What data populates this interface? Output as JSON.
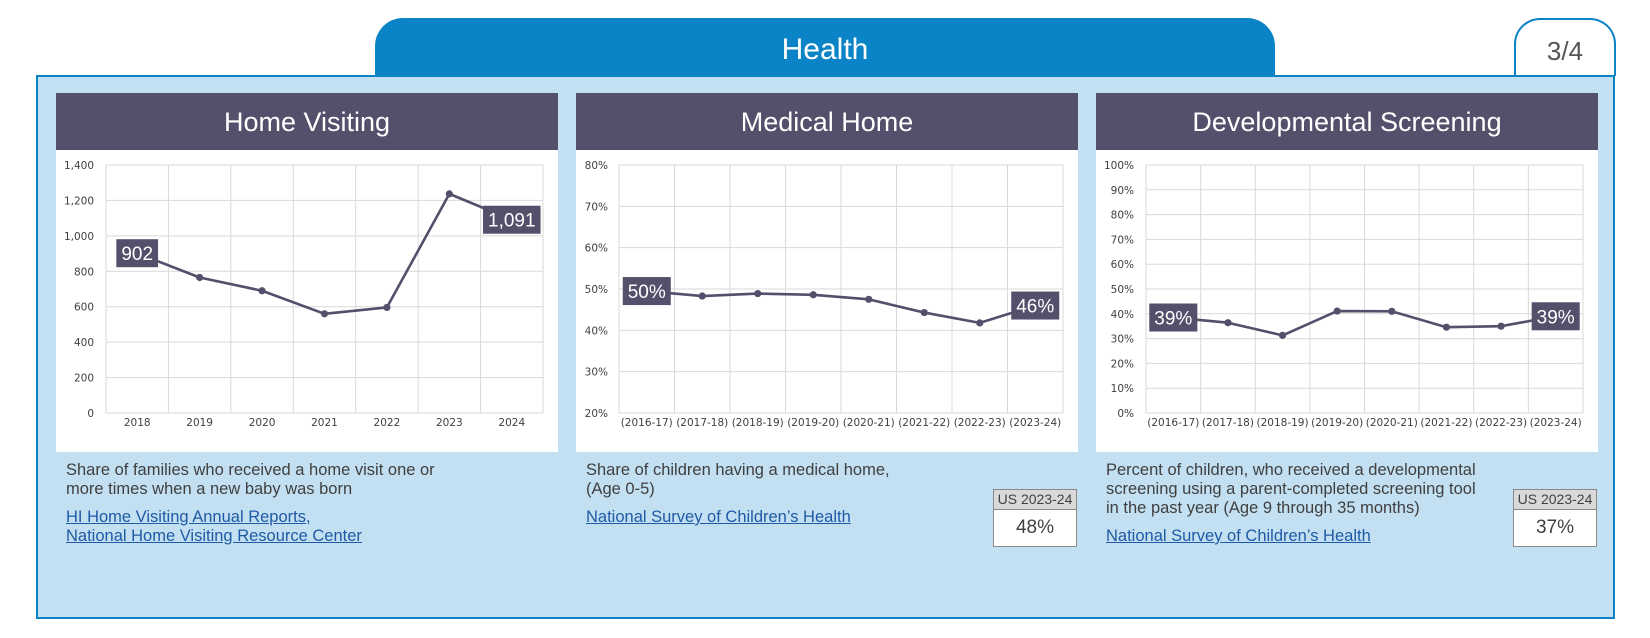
{
  "header": {
    "title": "Health",
    "page": "3/4"
  },
  "colors": {
    "header_bg": "#0a84c6",
    "panel_bg": "#c2e0f1",
    "card_header_bg": "#52506b",
    "line": "#52506b",
    "link": "#1f5aa6"
  },
  "cards": [
    {
      "title": "Home Visiting",
      "description": [
        "Share of families who received a home visit one or",
        "more times when a new baby was born"
      ],
      "source": [
        "HI Home Visiting Annual Reports,",
        "National Home Visiting Resource Center"
      ]
    },
    {
      "title": "Medical Home",
      "description": [
        "Share of children having a medical home,",
        "(Age 0-5)"
      ],
      "source": [
        "National Survey of Children’s Health"
      ],
      "us_badge": {
        "label": "US 2023-24",
        "value": "48%"
      }
    },
    {
      "title": "Developmental Screening",
      "description": [
        "Percent of children, who received a developmental",
        "screening using a parent-completed screening tool",
        "in the past year (Age 9 through 35 months)"
      ],
      "source": [
        "National Survey of Children’s Health"
      ],
      "us_badge": {
        "label": "US 2023-24",
        "value": "37%"
      }
    }
  ],
  "chart_data": [
    {
      "type": "line",
      "title": "Home Visiting",
      "categories": [
        "2018",
        "2019",
        "2020",
        "2021",
        "2022",
        "2023",
        "2024"
      ],
      "values": [
        902,
        765,
        690,
        560,
        596,
        1237,
        1091
      ],
      "ylim": [
        0,
        1400
      ],
      "yticks": [
        0,
        200,
        400,
        600,
        800,
        1000,
        1200,
        1400
      ],
      "ytick_labels": [
        "0",
        "200",
        "400",
        "600",
        "800",
        "1,000",
        "1,200",
        "1,400"
      ],
      "data_labels": [
        {
          "index": 0,
          "text": "902"
        },
        {
          "index": 6,
          "text": "1,091"
        }
      ],
      "grid": true
    },
    {
      "type": "line",
      "title": "Medical Home",
      "categories": [
        "(2016-17)",
        "(2017-18)",
        "(2018-19)",
        "(2019-20)",
        "(2020-21)",
        "(2021-22)",
        "(2022-23)",
        "(2023-24)"
      ],
      "values": [
        49.5,
        48.3,
        48.9,
        48.6,
        47.5,
        44.3,
        41.8,
        46
      ],
      "ylim": [
        20,
        80
      ],
      "yticks": [
        20,
        30,
        40,
        50,
        60,
        70,
        80
      ],
      "ytick_labels": [
        "20%",
        "30%",
        "40%",
        "50%",
        "60%",
        "70%",
        "80%"
      ],
      "data_labels": [
        {
          "index": 0,
          "text": "50%"
        },
        {
          "index": 7,
          "text": "46%"
        }
      ],
      "grid": true
    },
    {
      "type": "line",
      "title": "Developmental Screening",
      "categories": [
        "(2016-17)",
        "(2017-18)",
        "(2018-19)",
        "(2019-20)",
        "(2020-21)",
        "(2021-22)",
        "(2022-23)",
        "(2023-24)"
      ],
      "values": [
        38.5,
        36.4,
        31.3,
        41.1,
        41,
        34.6,
        35,
        39
      ],
      "ylim": [
        0,
        100
      ],
      "yticks": [
        0,
        10,
        20,
        30,
        40,
        50,
        60,
        70,
        80,
        90,
        100
      ],
      "ytick_labels": [
        "0%",
        "10%",
        "20%",
        "30%",
        "40%",
        "50%",
        "60%",
        "70%",
        "80%",
        "90%",
        "100%"
      ],
      "data_labels": [
        {
          "index": 0,
          "text": "39%"
        },
        {
          "index": 7,
          "text": "39%"
        }
      ],
      "grid": true
    }
  ]
}
